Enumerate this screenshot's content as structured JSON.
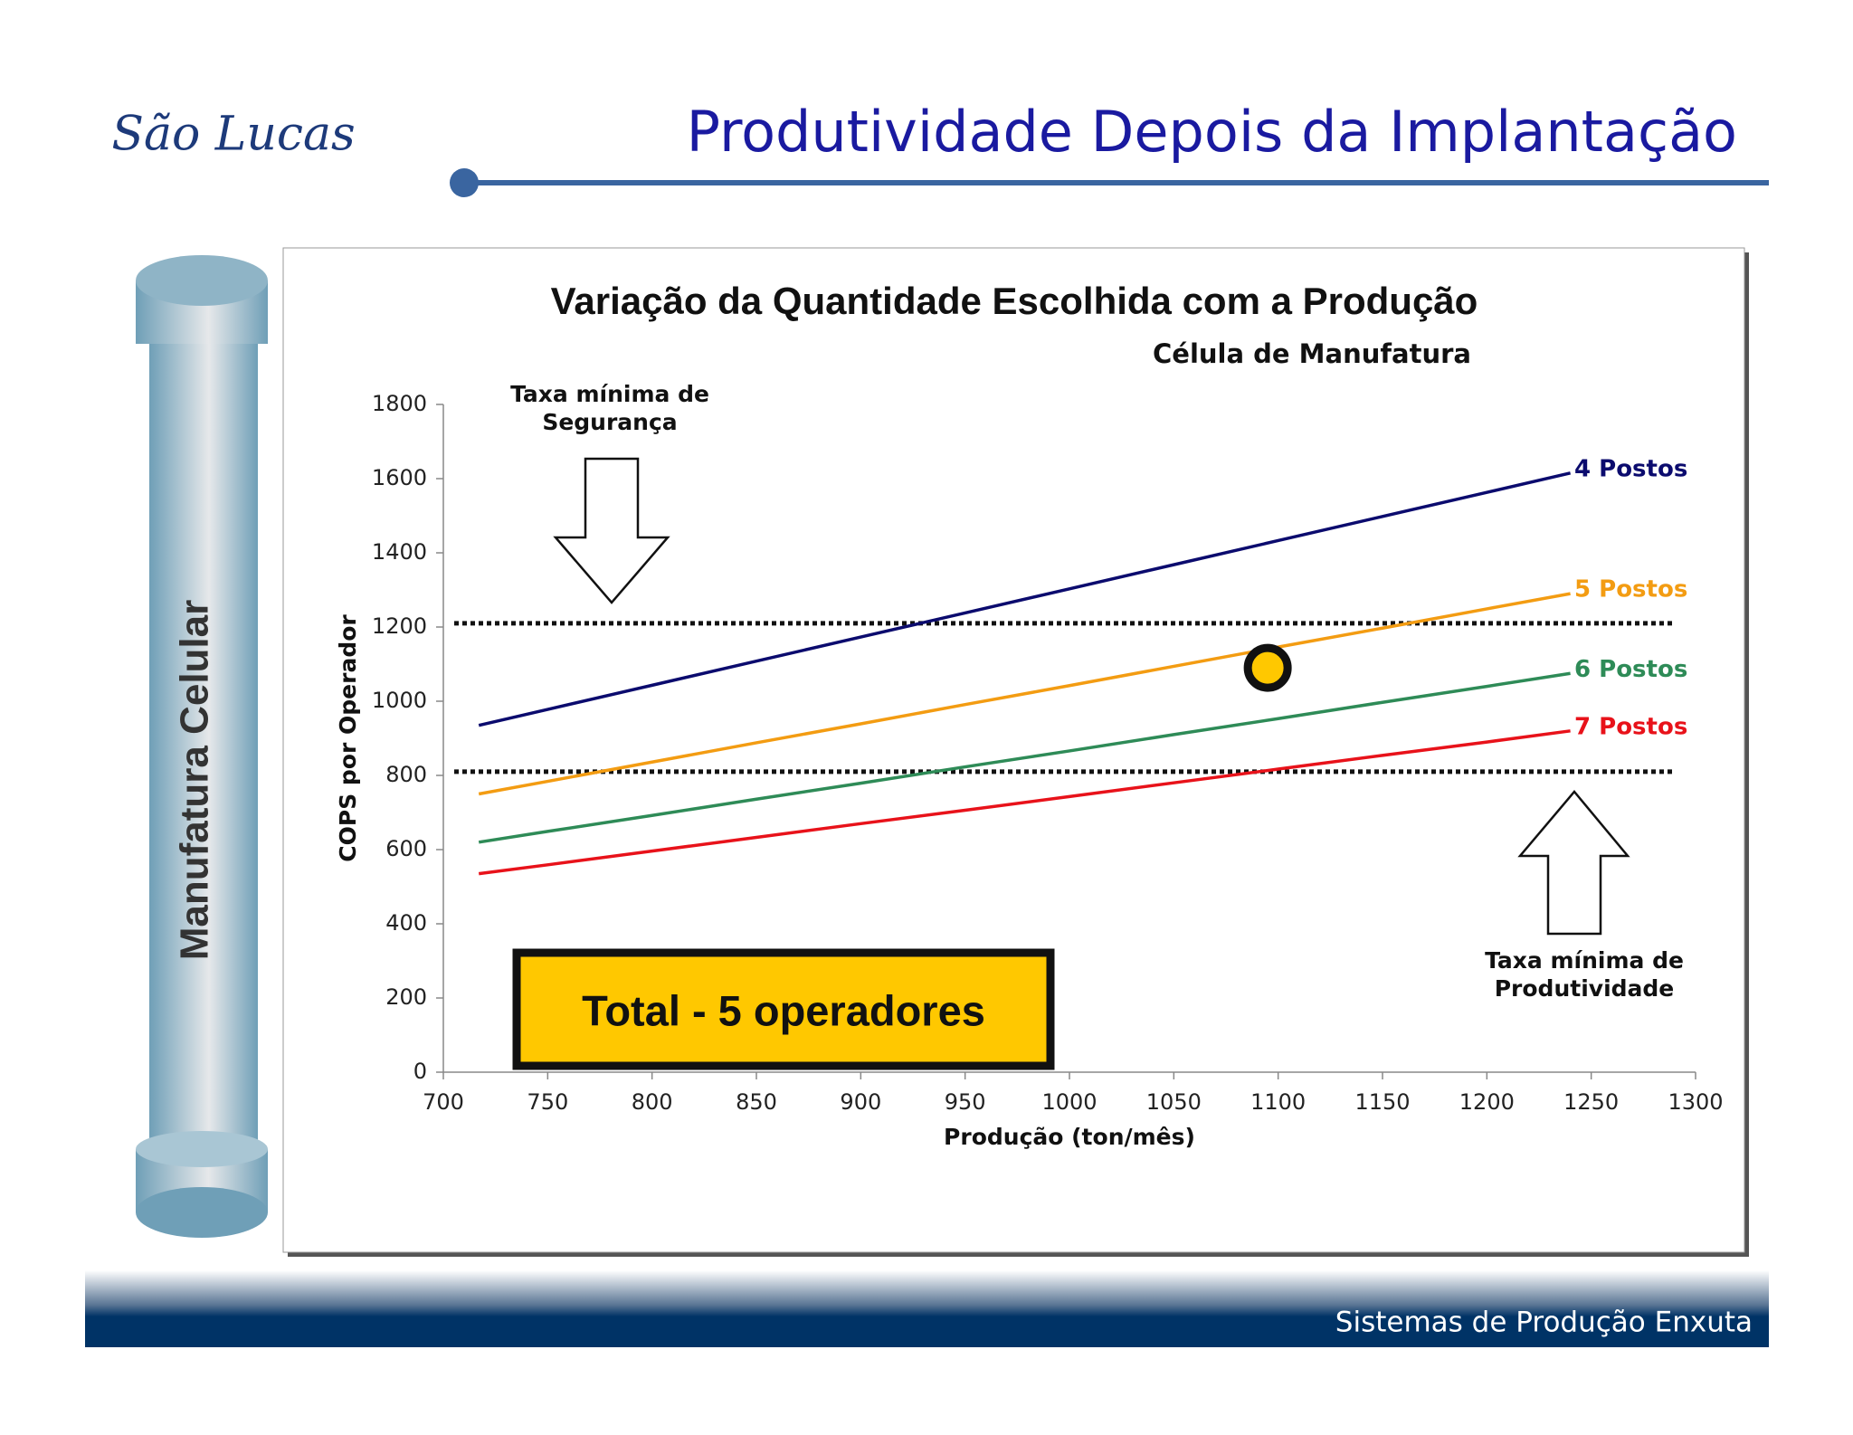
{
  "slide_title": "Produtividade Depois da Implantação",
  "logo": "São Lucas",
  "side_label": "Manufatura Celular",
  "footer": "Sistemas de Produção Enxuta",
  "chart_data": {
    "type": "line",
    "title": "Variação da Quantidade Escolhida com a Produção",
    "subtitle": "Célula de Manufatura",
    "x_label": "Produção (ton/mês)",
    "y_label": "COPS por Operador",
    "xlim": [
      700,
      1300
    ],
    "xticks": [
      700,
      750,
      800,
      850,
      900,
      950,
      1000,
      1050,
      1100,
      1150,
      1200,
      1250,
      1300
    ],
    "ylim": [
      0,
      1800
    ],
    "yticks": [
      0,
      200,
      400,
      600,
      800,
      1000,
      1200,
      1400,
      1600,
      1800
    ],
    "x": [
      717,
      750,
      800,
      850,
      900,
      950,
      1000,
      1050,
      1100,
      1150,
      1200,
      1240
    ],
    "series": [
      {
        "name": "4 Postos",
        "color": "#0b0b6e",
        "values": [
          935,
          978,
          1043,
          1108,
          1173,
          1238,
          1303,
          1368,
          1433,
          1498,
          1563,
          1615
        ]
      },
      {
        "name": "5 Postos",
        "color": "#f39c12",
        "values": [
          750,
          784,
          836,
          888,
          939,
          991,
          1042,
          1094,
          1146,
          1197,
          1249,
          1290
        ]
      },
      {
        "name": "6 Postos",
        "color": "#2e8b57",
        "values": [
          620,
          649,
          692,
          736,
          779,
          823,
          866,
          910,
          953,
          997,
          1040,
          1075
        ]
      },
      {
        "name": "7 Postos",
        "color": "#e8121a",
        "values": [
          535,
          559,
          596,
          633,
          670,
          706,
          743,
          780,
          817,
          854,
          890,
          920
        ]
      }
    ],
    "reference_lines": [
      {
        "value": 1210
      },
      {
        "value": 810
      }
    ],
    "highlight": {
      "x": 1095,
      "y": 1090,
      "color": "#ffc800"
    },
    "annotations": [
      {
        "lines": [
          "Taxa mínima de",
          "Segurança"
        ]
      },
      {
        "lines": [
          "Taxa mínima de",
          "Produtividade"
        ]
      }
    ],
    "callout": "Total - 5 operadores"
  }
}
